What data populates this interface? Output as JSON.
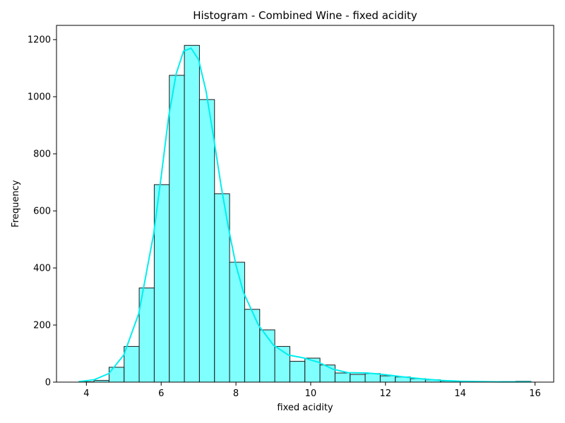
{
  "chart_data": {
    "type": "bar",
    "title": "Histogram - Combined Wine - fixed acidity",
    "xlabel": "fixed acidity",
    "ylabel": "Frequency",
    "xlim": [
      3.2,
      16.5
    ],
    "ylim": [
      0,
      1250
    ],
    "xticks": [
      4,
      6,
      8,
      10,
      12,
      14,
      16
    ],
    "yticks": [
      0,
      200,
      400,
      600,
      800,
      1000,
      1200
    ],
    "grid": false,
    "bar_color": "#80ffff",
    "kde_color": "#00eeee",
    "bin_start": 3.8,
    "bin_width": 0.403,
    "counts": [
      1,
      6,
      52,
      125,
      330,
      692,
      1075,
      1180,
      990,
      660,
      420,
      255,
      183,
      125,
      73,
      84,
      60,
      32,
      27,
      30,
      22,
      18,
      12,
      8,
      4,
      2,
      1,
      1,
      2,
      3
    ],
    "kde": {
      "x": [
        3.8,
        4.2,
        4.6,
        5.0,
        5.4,
        5.8,
        6.0,
        6.2,
        6.4,
        6.6,
        6.8,
        7.0,
        7.2,
        7.4,
        7.6,
        7.8,
        8.0,
        8.2,
        8.6,
        9.0,
        9.4,
        9.8,
        10.2,
        10.6,
        11.0,
        11.5,
        12.0,
        12.5,
        13.0,
        13.5,
        14.0,
        14.5,
        15.0,
        15.5,
        15.9
      ],
      "y": [
        2,
        8,
        30,
        95,
        240,
        520,
        720,
        930,
        1080,
        1160,
        1170,
        1130,
        1020,
        860,
        690,
        540,
        410,
        315,
        200,
        130,
        95,
        85,
        70,
        45,
        33,
        32,
        26,
        18,
        11,
        6,
        3,
        2,
        1,
        1,
        1
      ]
    }
  }
}
